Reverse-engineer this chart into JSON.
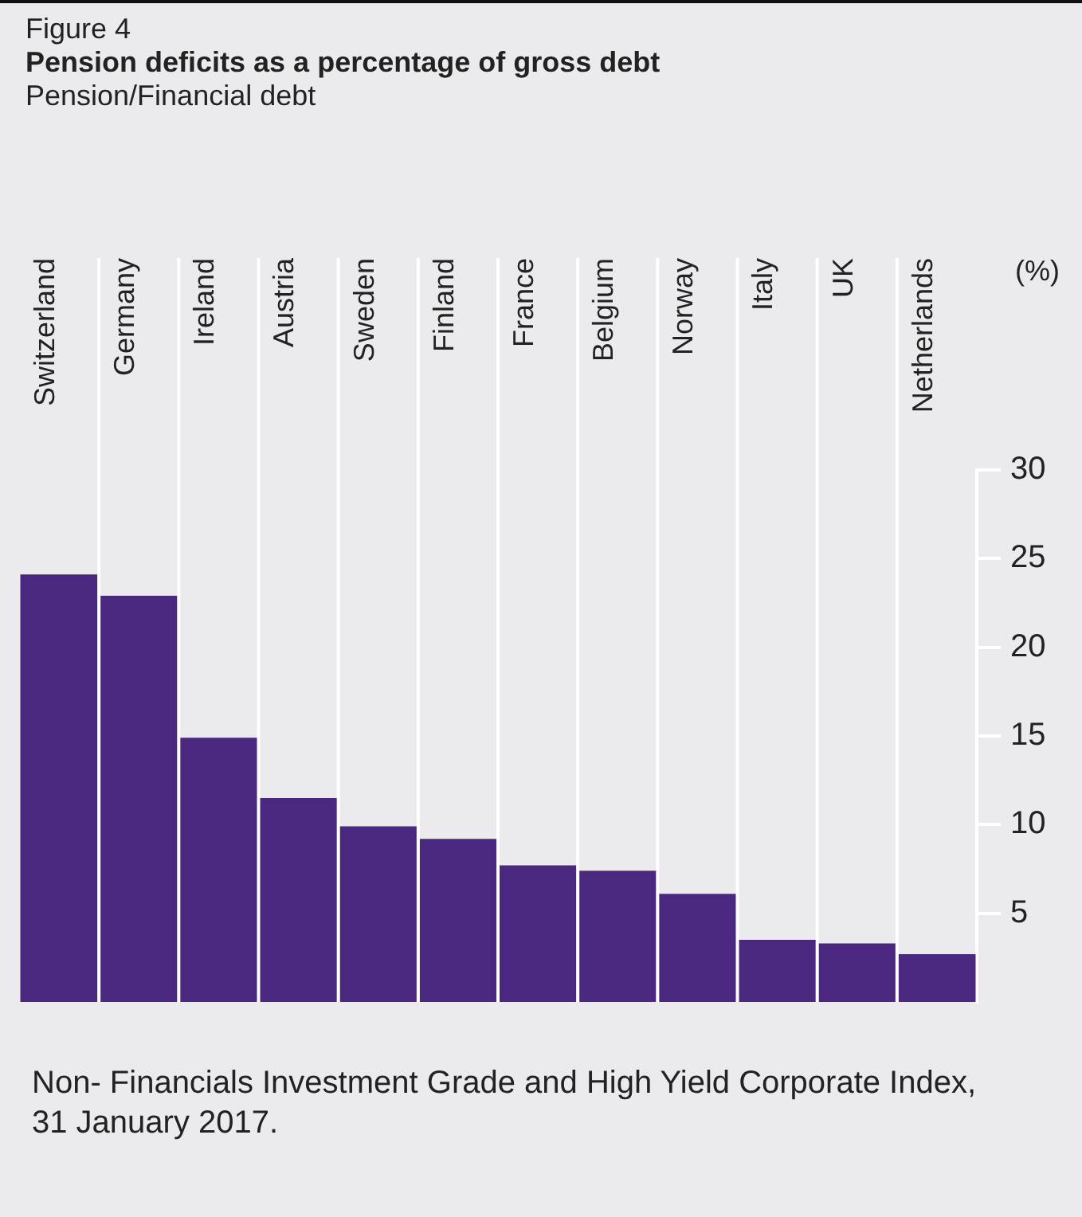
{
  "chart_data": {
    "type": "bar",
    "title": "Pension deficits as a percentage of gross debt",
    "subtitle": "Pension/Financial debt",
    "ylabel": "(%)",
    "annotations": [
      "Figure 4",
      "Non- Financials Investment Grade and High Yield Corporate Index, 31 January 2017."
    ],
    "categories": [
      "Switzerland",
      "Germany",
      "Ireland",
      "Austria",
      "Sweden",
      "Finland",
      "France",
      "Belgium",
      "Norway",
      "Italy",
      "UK",
      "Netherlands"
    ],
    "values": [
      24.1,
      22.9,
      14.9,
      11.5,
      9.9,
      9.2,
      7.7,
      7.4,
      6.1,
      3.5,
      3.3,
      2.7
    ],
    "color": "#4a2880",
    "ylim": [
      0,
      30
    ],
    "yticks": [
      5,
      10,
      15,
      20,
      25,
      30
    ],
    "grid": "x"
  }
}
